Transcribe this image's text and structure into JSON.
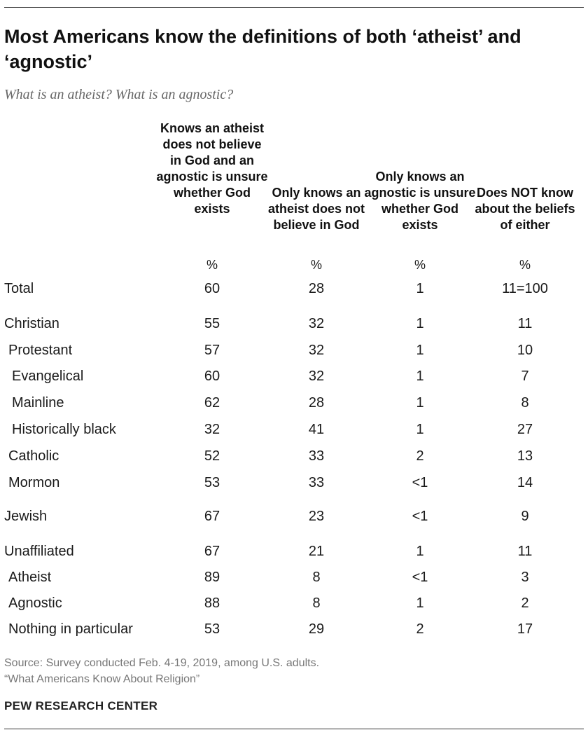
{
  "title": "Most Americans know the definitions of both ‘atheist’ and ‘agnostic’",
  "subtitle": "What is an atheist? What is an agnostic?",
  "source_lines": [
    "Source: Survey conducted Feb. 4-19, 2019, among U.S. adults.",
    "“What Americans Know About Religion”"
  ],
  "organization": "PEW RESEARCH CENTER",
  "chart_data": {
    "type": "table",
    "unit_label": "%",
    "columns": [
      "Knows an atheist does not believe in God and an agnostic is unsure whether God exists",
      "Only knows an atheist does not believe in God",
      "Only knows an agnostic is unsure whether God exists",
      "Does NOT know about the beliefs of either"
    ],
    "rows": [
      {
        "label": "Total",
        "values": [
          "60",
          "28",
          "1",
          "11=100"
        ]
      },
      {
        "label": "Christian",
        "values": [
          "55",
          "32",
          "1",
          "11"
        ]
      },
      {
        "label": "Protestant",
        "values": [
          "57",
          "32",
          "1",
          "10"
        ]
      },
      {
        "label": "Evangelical",
        "values": [
          "60",
          "32",
          "1",
          "7"
        ]
      },
      {
        "label": "Mainline",
        "values": [
          "62",
          "28",
          "1",
          "8"
        ]
      },
      {
        "label": "Historically black",
        "values": [
          "32",
          "41",
          "1",
          "27"
        ]
      },
      {
        "label": "Catholic",
        "values": [
          "52",
          "33",
          "2",
          "13"
        ]
      },
      {
        "label": "Mormon",
        "values": [
          "53",
          "33",
          "<1",
          "14"
        ]
      },
      {
        "label": "Jewish",
        "values": [
          "67",
          "23",
          "<1",
          "9"
        ]
      },
      {
        "label": "Unaffiliated",
        "values": [
          "67",
          "21",
          "1",
          "11"
        ]
      },
      {
        "label": "Atheist",
        "values": [
          "89",
          "8",
          "<1",
          "3"
        ]
      },
      {
        "label": "Agnostic",
        "values": [
          "88",
          "8",
          "1",
          "2"
        ]
      },
      {
        "label": "Nothing in particular",
        "values": [
          "53",
          "29",
          "2",
          "17"
        ]
      }
    ]
  }
}
